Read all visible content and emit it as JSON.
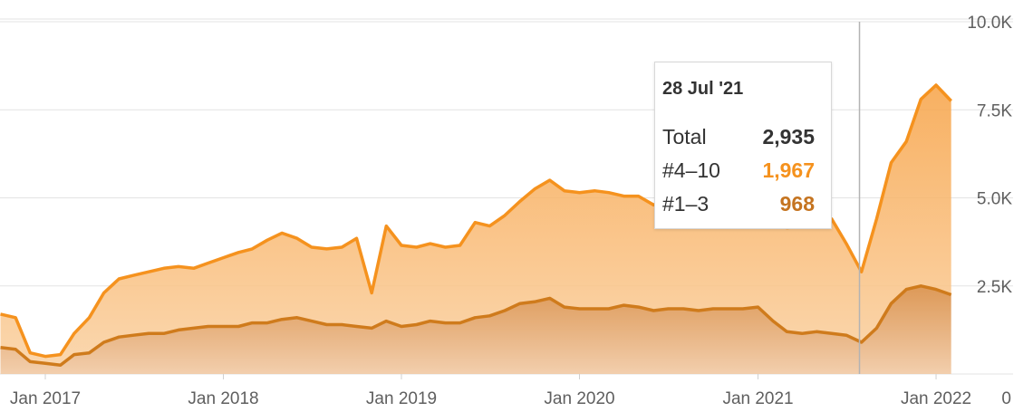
{
  "chart_data": {
    "type": "area",
    "x_ticks": [
      "Jan 2017",
      "Jan 2018",
      "Jan 2019",
      "Jan 2020",
      "Jan 2021",
      "Jan 2022"
    ],
    "y_ticks": [
      "0",
      "2.5K",
      "5.0K",
      "7.5K",
      "10.0K"
    ],
    "ylim": [
      0,
      10000
    ],
    "grid": true,
    "stacked": true,
    "series": [
      {
        "name": "#1–3",
        "color": "#cf7b1c",
        "x": [
          "2016-10",
          "2016-11",
          "2016-12",
          "2017-01",
          "2017-02",
          "2017-03",
          "2017-04",
          "2017-05",
          "2017-06",
          "2017-07",
          "2017-08",
          "2017-09",
          "2017-10",
          "2017-11",
          "2017-12",
          "2018-01",
          "2018-02",
          "2018-03",
          "2018-04",
          "2018-05",
          "2018-06",
          "2018-07",
          "2018-08",
          "2018-09",
          "2018-10",
          "2018-11",
          "2018-12",
          "2019-01",
          "2019-02",
          "2019-03",
          "2019-04",
          "2019-05",
          "2019-06",
          "2019-07",
          "2019-08",
          "2019-09",
          "2019-10",
          "2019-11",
          "2019-12",
          "2020-01",
          "2020-02",
          "2020-03",
          "2020-04",
          "2020-05",
          "2020-06",
          "2020-07",
          "2020-08",
          "2020-09",
          "2020-10",
          "2020-11",
          "2020-12",
          "2021-01",
          "2021-02",
          "2021-03",
          "2021-04",
          "2021-05",
          "2021-06",
          "2021-07",
          "2021-08",
          "2021-09",
          "2021-10",
          "2021-11",
          "2021-12",
          "2022-01",
          "2022-02"
        ],
        "values": [
          750,
          700,
          350,
          300,
          250,
          550,
          600,
          900,
          1050,
          1100,
          1150,
          1150,
          1250,
          1300,
          1350,
          1350,
          1350,
          1450,
          1450,
          1550,
          1600,
          1500,
          1400,
          1400,
          1350,
          1300,
          1500,
          1350,
          1400,
          1500,
          1450,
          1450,
          1600,
          1650,
          1800,
          2000,
          2050,
          2150,
          1900,
          1850,
          1850,
          1850,
          1950,
          1900,
          1800,
          1850,
          1850,
          1800,
          1850,
          1850,
          1850,
          1900,
          1500,
          1200,
          1150,
          1200,
          1150,
          1100,
          900,
          1300,
          2000,
          2400,
          2500,
          2400,
          2250
        ]
      },
      {
        "name": "#4–10",
        "color": "#f5921e",
        "x": [
          "2016-10",
          "2016-11",
          "2016-12",
          "2017-01",
          "2017-02",
          "2017-03",
          "2017-04",
          "2017-05",
          "2017-06",
          "2017-07",
          "2017-08",
          "2017-09",
          "2017-10",
          "2017-11",
          "2017-12",
          "2018-01",
          "2018-02",
          "2018-03",
          "2018-04",
          "2018-05",
          "2018-06",
          "2018-07",
          "2018-08",
          "2018-09",
          "2018-10",
          "2018-11",
          "2018-12",
          "2019-01",
          "2019-02",
          "2019-03",
          "2019-04",
          "2019-05",
          "2019-06",
          "2019-07",
          "2019-08",
          "2019-09",
          "2019-10",
          "2019-11",
          "2019-12",
          "2020-01",
          "2020-02",
          "2020-03",
          "2020-04",
          "2020-05",
          "2020-06",
          "2020-07",
          "2020-08",
          "2020-09",
          "2020-10",
          "2020-11",
          "2020-12",
          "2021-01",
          "2021-02",
          "2021-03",
          "2021-04",
          "2021-05",
          "2021-06",
          "2021-07",
          "2021-08",
          "2021-09",
          "2021-10",
          "2021-11",
          "2021-12",
          "2022-01",
          "2022-02"
        ],
        "values": [
          950,
          900,
          250,
          200,
          300,
          600,
          1000,
          1400,
          1650,
          1700,
          1750,
          1850,
          1800,
          1700,
          1800,
          1950,
          2100,
          2100,
          2350,
          2450,
          2250,
          2100,
          2150,
          2200,
          2500,
          1000,
          2700,
          2300,
          2200,
          2200,
          2150,
          2200,
          2700,
          2550,
          2700,
          2900,
          3200,
          3350,
          3300,
          3300,
          3350,
          3300,
          3100,
          3150,
          3000,
          3100,
          2950,
          2950,
          3000,
          3050,
          3100,
          2600,
          2750,
          2950,
          3050,
          3000,
          3250,
          2600,
          2000,
          3100,
          4000,
          4200,
          5300,
          5800,
          5500
        ]
      }
    ],
    "totals": [
      1700,
      1600,
      600,
      500,
      550,
      1150,
      1600,
      2300,
      2700,
      2800,
      2900,
      3000,
      3050,
      3000,
      3150,
      3300,
      3450,
      3550,
      3800,
      4000,
      3850,
      3600,
      3550,
      3600,
      3850,
      2300,
      4200,
      3650,
      3600,
      3700,
      3600,
      3650,
      4300,
      4200,
      4500,
      4900,
      5250,
      5500,
      5200,
      5150,
      5200,
      5150,
      5050,
      5050,
      4800,
      4950,
      4800,
      4750,
      4850,
      4900,
      4950,
      4500,
      4250,
      4150,
      4200,
      4200,
      4400,
      3700,
      2900,
      4400,
      6000,
      6600,
      7800,
      8200,
      7750
    ],
    "crosshair_x": "2021-07-28",
    "tooltip": {
      "date": "28 Jul '21",
      "rows": [
        {
          "label": "Total",
          "value": "2,935",
          "color": "#333333"
        },
        {
          "label": "#4–10",
          "value": "1,967",
          "color": "#f5921e"
        },
        {
          "label": "#1–3",
          "value": "968",
          "color": "#c57420"
        }
      ]
    }
  }
}
